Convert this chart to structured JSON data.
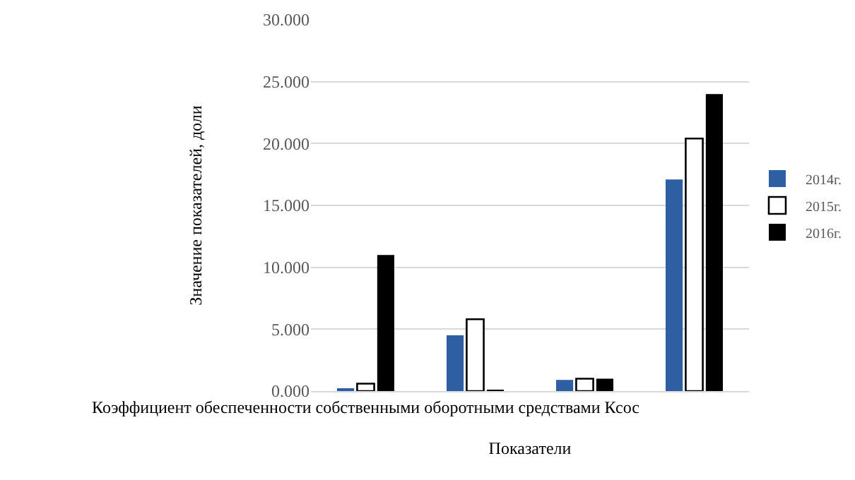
{
  "chart_data": {
    "type": "bar",
    "xlabel": "Показатели",
    "ylabel": "Значение показателей, доли",
    "categories": [
      "Коэффициент обеспеченности собственными оборотными средствами Ксос",
      null,
      null,
      null
    ],
    "series": [
      {
        "name": "2014г.",
        "color": "#2e5fa3",
        "values": [
          0.2,
          4.5,
          0.9,
          17.1
        ]
      },
      {
        "name": "2015г.",
        "color": "#ffffff",
        "values": [
          0.6,
          5.8,
          1.0,
          20.4
        ]
      },
      {
        "name": "2016г.",
        "color": "#000000",
        "values": [
          11.0,
          0.1,
          1.0,
          24.0
        ]
      }
    ],
    "ylim": [
      0,
      30
    ],
    "yticks": [
      {
        "value": 0,
        "label": "0.000"
      },
      {
        "value": 5,
        "label": "5.000"
      },
      {
        "value": 10,
        "label": "10.000"
      },
      {
        "value": 15,
        "label": "15.000"
      },
      {
        "value": 20,
        "label": "20.000"
      },
      {
        "value": 25,
        "label": "25.000"
      },
      {
        "value": 30,
        "label": "30.000"
      }
    ],
    "grid": "y",
    "legend": "right"
  }
}
